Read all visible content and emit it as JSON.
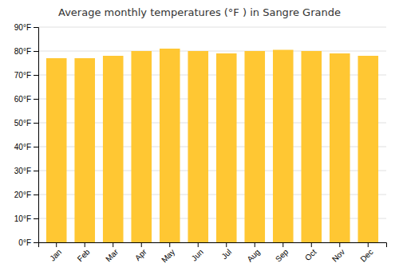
{
  "chart_data": {
    "type": "bar",
    "title": "Average monthly temperatures (°F ) in Sangre Grande",
    "categories": [
      "Jan",
      "Feb",
      "Mar",
      "Apr",
      "May",
      "Jun",
      "Jul",
      "Aug",
      "Sep",
      "Oct",
      "Nov",
      "Dec"
    ],
    "values": [
      77,
      77,
      78,
      80,
      81,
      80,
      79,
      80,
      80.5,
      80,
      79,
      78
    ],
    "color": "#ffc733",
    "ylim": [
      0,
      90
    ],
    "yticks": [
      {
        "value": 0,
        "label": "0°F"
      },
      {
        "value": 10,
        "label": "10°F"
      },
      {
        "value": 20,
        "label": "20°F"
      },
      {
        "value": 30,
        "label": "30°F"
      },
      {
        "value": 40,
        "label": "40°F"
      },
      {
        "value": 50,
        "label": "50°F"
      },
      {
        "value": 60,
        "label": "60°F"
      },
      {
        "value": 70,
        "label": "70°F"
      },
      {
        "value": 80,
        "label": "80°F"
      },
      {
        "value": 90,
        "label": "90°F"
      }
    ],
    "grid": true
  }
}
